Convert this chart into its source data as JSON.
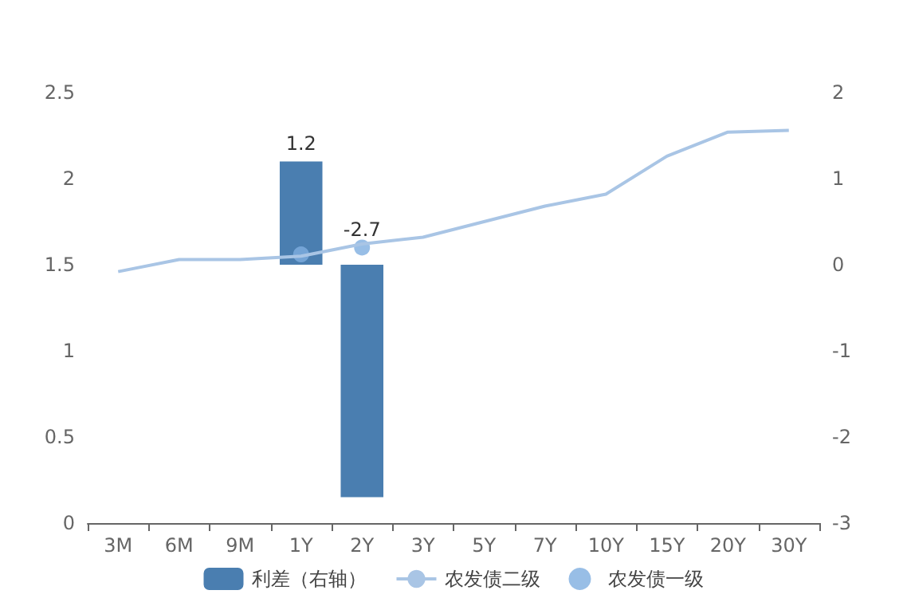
{
  "chart_data": {
    "type": "bar",
    "categories": [
      "3M",
      "6M",
      "9M",
      "1Y",
      "2Y",
      "3Y",
      "5Y",
      "7Y",
      "10Y",
      "15Y",
      "20Y",
      "30Y"
    ],
    "series": [
      {
        "name": "利差（右轴）",
        "axis": "y2",
        "color": "#4a7eb0",
        "values": [
          null,
          null,
          null,
          1.2,
          -2.7,
          null,
          null,
          null,
          null,
          null,
          null,
          null
        ],
        "value_labels": [
          null,
          null,
          null,
          "1.2",
          "-2.7",
          null,
          null,
          null,
          null,
          null,
          null,
          null
        ]
      },
      {
        "name": "农发债二级",
        "type": "line",
        "color": "#a9c5e5",
        "values": [
          1.46,
          1.53,
          1.53,
          1.55,
          1.62,
          1.66,
          1.75,
          1.84,
          1.91,
          2.13,
          2.27,
          2.28
        ]
      },
      {
        "name": "农发债一级",
        "type": "scatter",
        "color": "#7eaee0",
        "values": [
          null,
          null,
          null,
          1.56,
          1.6,
          null,
          null,
          null,
          null,
          null,
          null,
          null
        ]
      }
    ],
    "ylim": [
      0,
      2.5
    ],
    "yticks": [
      0,
      0.5,
      1,
      1.5,
      2,
      2.5
    ],
    "y2lim": [
      -3,
      2
    ],
    "y2ticks": [
      -3,
      -2,
      -1,
      0,
      1,
      2
    ],
    "legend": "bottom",
    "grid": false
  }
}
